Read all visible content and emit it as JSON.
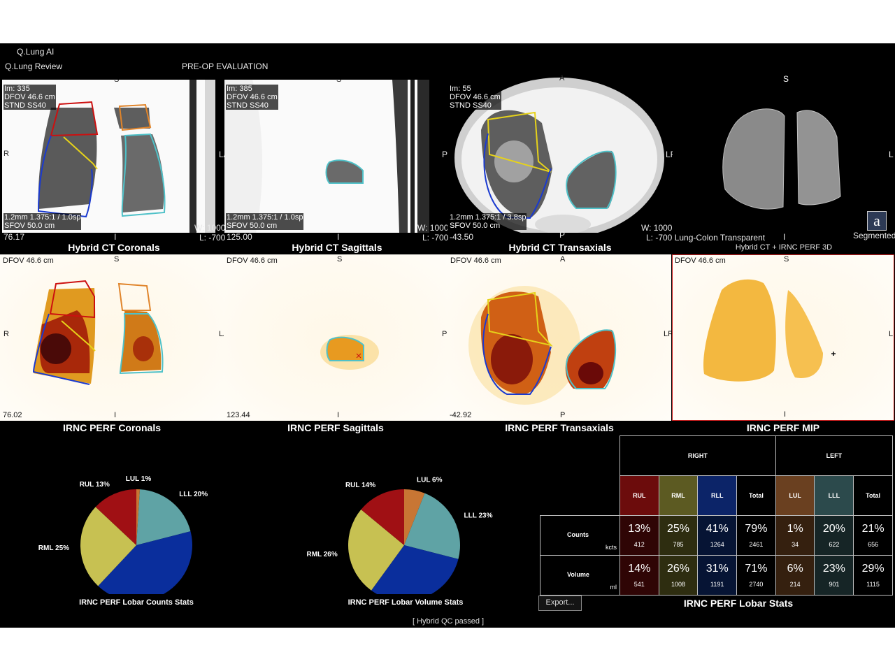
{
  "app": {
    "title": "Q.Lung AI",
    "subtitle": "Q.Lung Review",
    "mode": "PRE-OP EVALUATION",
    "status": "[ Hybrid QC passed ]"
  },
  "ct_panels": [
    {
      "caption": "Hybrid CT Coronals",
      "info": [
        "Im: 335",
        "DFOV 46.6 cm",
        "STND SS40"
      ],
      "bottom": [
        "1.2mm 1.375:1 / 1.0sp",
        "SFOV 50.0 cm"
      ],
      "pos": "76.17",
      "o_top": "S",
      "o_left": "R",
      "o_right": "LA",
      "o_bottom": "I",
      "wl": [
        "W: 1000",
        "L: -700"
      ]
    },
    {
      "caption": "Hybrid CT Sagittals",
      "info": [
        "Im: 385",
        "DFOV 46.6 cm",
        "STND SS40"
      ],
      "bottom": [
        "1.2mm 1.375:1 / 1.0sp",
        "SFOV 50.0 cm"
      ],
      "pos": "125.00",
      "o_top": "S",
      "o_left": "",
      "o_right": "PR",
      "o_bottom": "I",
      "wl": [
        "W: 1000",
        "L: -700"
      ]
    },
    {
      "caption": "Hybrid CT Transaxials",
      "info": [
        "Im: 55",
        "DFOV 46.6 cm",
        "STND SS40"
      ],
      "bottom": [
        "1.2mm 1.375:1 / 3.8sp",
        "SFOV 50.0 cm"
      ],
      "pos": "-43.50",
      "o_top": "A",
      "o_left": "",
      "o_right": "LR",
      "o_bottom": "P",
      "wl": [
        "W: 1000",
        "L: -700 Lung-Colon Transparent"
      ]
    },
    {
      "caption": "Hybrid CT + IRNC PERF 3D",
      "o_top": "S",
      "o_right": "L",
      "o_bottom": "I",
      "segmented": "Segmented",
      "icon_letter": "a"
    }
  ],
  "perf_panels": [
    {
      "caption": "IRNC PERF Coronals",
      "dfov": "DFOV 46.6 cm",
      "pos": "76.02",
      "o_top": "S",
      "o_left": "R",
      "o_right": "LA",
      "o_bottom": "I"
    },
    {
      "caption": "IRNC PERF Sagittals",
      "dfov": "DFOV 46.6 cm",
      "pos": "123.44",
      "o_top": "S",
      "o_right": "PR",
      "o_bottom": "I"
    },
    {
      "caption": "IRNC PERF Transaxials",
      "dfov": "DFOV 46.6 cm",
      "pos": "-42.92",
      "o_top": "A",
      "o_right": "LR",
      "o_bottom": "P"
    },
    {
      "caption": "IRNC PERF MIP",
      "dfov": "DFOV 46.6 cm",
      "o_top": "S",
      "o_right": "L",
      "o_bottom": "I"
    }
  ],
  "colors": {
    "RUL": "#a01014",
    "RML": "#c7c152",
    "RLL": "#0a2e9c",
    "LUL": "#c87634",
    "LLL": "#5fa3a5"
  },
  "chart_data": [
    {
      "type": "pie",
      "title": "IRNC PERF Lobar Counts Stats",
      "categories": [
        "LUL",
        "LLL",
        "RLL",
        "RML",
        "RUL"
      ],
      "values": [
        1,
        20,
        41,
        25,
        13
      ],
      "labels": [
        "LUL 1%",
        "LLL 20%",
        "RLL 41%",
        "RML 25%",
        "RUL 13%"
      ]
    },
    {
      "type": "pie",
      "title": "IRNC PERF Lobar Volume Stats",
      "categories": [
        "LUL",
        "LLL",
        "RLL",
        "RML",
        "RUL"
      ],
      "values": [
        6,
        23,
        31,
        26,
        14
      ],
      "labels": [
        "LUL 6%",
        "LLL 23%",
        "RLL 31%",
        "RML 26%",
        "RUL 14%"
      ]
    },
    {
      "type": "table",
      "title": "IRNC PERF Lobar Stats",
      "groups": [
        "RIGHT",
        "LEFT"
      ],
      "columns": [
        "RUL",
        "RML",
        "RLL",
        "Total",
        "LUL",
        "LLL",
        "Total"
      ],
      "rows": [
        {
          "name": "Counts",
          "unit": "kcts",
          "pct": [
            "13%",
            "25%",
            "41%",
            "79%",
            "1%",
            "20%",
            "21%"
          ],
          "abs": [
            "412",
            "785",
            "1264",
            "2461",
            "34",
            "622",
            "656"
          ]
        },
        {
          "name": "Volume",
          "unit": "ml",
          "pct": [
            "14%",
            "26%",
            "31%",
            "71%",
            "6%",
            "23%",
            "29%"
          ],
          "abs": [
            "541",
            "1008",
            "1191",
            "2740",
            "214",
            "901",
            "1115"
          ]
        }
      ]
    }
  ],
  "export_label": "Export..."
}
